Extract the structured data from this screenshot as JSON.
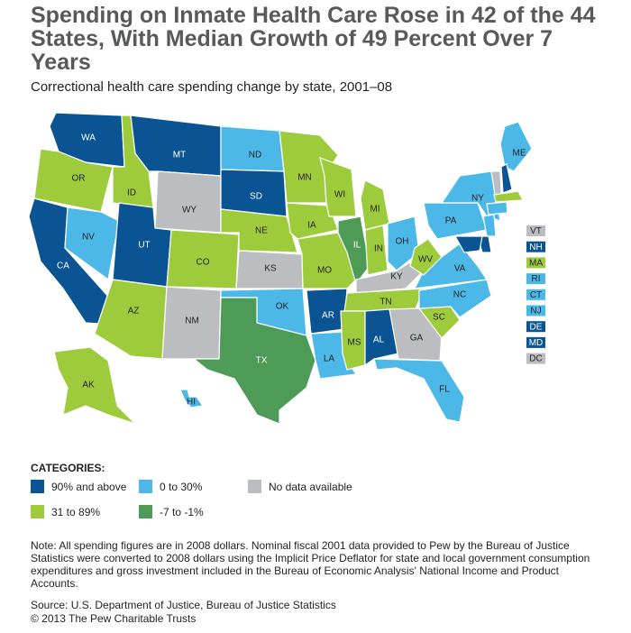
{
  "title": "Spending on Inmate Health Care Rose in 42 of the 44 States, With Median Growth of 49 Percent Over 7 Years",
  "subtitle": "Correctional health care spending change by state, 2001–08",
  "colors": {
    "c90": "#0b5494",
    "c0_30": "#4cb8e8",
    "c31_89": "#9ecb3b",
    "neg": "#4e9a57",
    "nodata": "#bcbdc0"
  },
  "legend": {
    "title": "CATEGORIES:",
    "items": [
      {
        "key": "c90",
        "label": "90% and above"
      },
      {
        "key": "c0_30",
        "label": "0 to 30%"
      },
      {
        "key": "nodata",
        "label": "No data available"
      },
      {
        "key": "c31_89",
        "label": "31 to 89%"
      },
      {
        "key": "neg",
        "label": "-7 to -1%"
      }
    ]
  },
  "states": [
    {
      "code": "WA",
      "cat": "c90"
    },
    {
      "code": "OR",
      "cat": "c31_89"
    },
    {
      "code": "CA",
      "cat": "c90"
    },
    {
      "code": "NV",
      "cat": "c0_30"
    },
    {
      "code": "ID",
      "cat": "c31_89"
    },
    {
      "code": "MT",
      "cat": "c90"
    },
    {
      "code": "WY",
      "cat": "nodata"
    },
    {
      "code": "UT",
      "cat": "c90"
    },
    {
      "code": "AZ",
      "cat": "c31_89"
    },
    {
      "code": "CO",
      "cat": "c31_89"
    },
    {
      "code": "NM",
      "cat": "nodata"
    },
    {
      "code": "ND",
      "cat": "c0_30"
    },
    {
      "code": "SD",
      "cat": "c90"
    },
    {
      "code": "NE",
      "cat": "c31_89"
    },
    {
      "code": "KS",
      "cat": "nodata"
    },
    {
      "code": "OK",
      "cat": "c0_30"
    },
    {
      "code": "TX",
      "cat": "neg"
    },
    {
      "code": "MN",
      "cat": "c31_89"
    },
    {
      "code": "IA",
      "cat": "c31_89"
    },
    {
      "code": "MO",
      "cat": "c31_89"
    },
    {
      "code": "AR",
      "cat": "c90"
    },
    {
      "code": "LA",
      "cat": "c0_30"
    },
    {
      "code": "WI",
      "cat": "c31_89"
    },
    {
      "code": "IL",
      "cat": "neg"
    },
    {
      "code": "MI",
      "cat": "c31_89"
    },
    {
      "code": "IN",
      "cat": "c31_89"
    },
    {
      "code": "OH",
      "cat": "c0_30"
    },
    {
      "code": "KY",
      "cat": "nodata"
    },
    {
      "code": "TN",
      "cat": "c31_89"
    },
    {
      "code": "MS",
      "cat": "c31_89"
    },
    {
      "code": "AL",
      "cat": "c90"
    },
    {
      "code": "GA",
      "cat": "nodata"
    },
    {
      "code": "FL",
      "cat": "c0_30"
    },
    {
      "code": "SC",
      "cat": "c31_89"
    },
    {
      "code": "NC",
      "cat": "c0_30"
    },
    {
      "code": "VA",
      "cat": "c0_30"
    },
    {
      "code": "WV",
      "cat": "c31_89"
    },
    {
      "code": "PA",
      "cat": "c0_30"
    },
    {
      "code": "NY",
      "cat": "c0_30"
    },
    {
      "code": "ME",
      "cat": "c0_30"
    },
    {
      "code": "AK",
      "cat": "c31_89"
    },
    {
      "code": "HI",
      "cat": "c0_30"
    }
  ],
  "small_states": [
    {
      "code": "VT",
      "cat": "nodata"
    },
    {
      "code": "NH",
      "cat": "c90"
    },
    {
      "code": "MA",
      "cat": "c31_89"
    },
    {
      "code": "RI",
      "cat": "c0_30"
    },
    {
      "code": "CT",
      "cat": "c0_30"
    },
    {
      "code": "NJ",
      "cat": "c0_30"
    },
    {
      "code": "DE",
      "cat": "c90"
    },
    {
      "code": "MD",
      "cat": "c90"
    },
    {
      "code": "DC",
      "cat": "nodata"
    }
  ],
  "note": "Note: All spending figures are in 2008 dollars. Nominal fiscal 2001 data provided to Pew by the Bureau of Justice Statistics were converted to 2008 dollars using the Implicit Price Deflator for state and local government consumption expenditures and gross investment included in the Bureau of Economic Analysis' National Income and Product Accounts.",
  "source": "Source: U.S. Department of Justice, Bureau of Justice Statistics",
  "copyright": "© 2013 The Pew Charitable Trusts"
}
